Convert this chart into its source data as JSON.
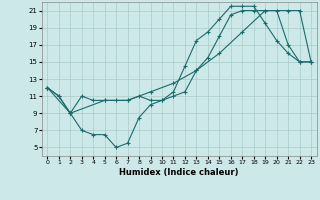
{
  "xlabel": "Humidex (Indice chaleur)",
  "bg_color": "#cce8e8",
  "grid_color": "#aacccc",
  "line_color": "#1a6b6b",
  "xlim": [
    -0.5,
    23.5
  ],
  "ylim": [
    4,
    22
  ],
  "xticks": [
    0,
    1,
    2,
    3,
    4,
    5,
    6,
    7,
    8,
    9,
    10,
    11,
    12,
    13,
    14,
    15,
    16,
    17,
    18,
    19,
    20,
    21,
    22,
    23
  ],
  "yticks": [
    5,
    7,
    9,
    11,
    13,
    15,
    17,
    19,
    21
  ],
  "line1_x": [
    0,
    1,
    2,
    3,
    4,
    5,
    6,
    7,
    8,
    9,
    10,
    11,
    12,
    13,
    14,
    15,
    16,
    17,
    18,
    19,
    20,
    21,
    22,
    23
  ],
  "line1_y": [
    12,
    11,
    9,
    7,
    6.5,
    6.5,
    5,
    5.5,
    8.5,
    10,
    10.5,
    11,
    11.5,
    14,
    15.5,
    18,
    20.5,
    21,
    21,
    21,
    21,
    17,
    15,
    15
  ],
  "line2_x": [
    0,
    1,
    2,
    3,
    4,
    5,
    6,
    7,
    8,
    9,
    10,
    11,
    12,
    13,
    14,
    15,
    16,
    17,
    18,
    19,
    20,
    21,
    22,
    23
  ],
  "line2_y": [
    12,
    11,
    9,
    11,
    10.5,
    10.5,
    10.5,
    10.5,
    11,
    10.5,
    10.5,
    11.5,
    14.5,
    17.5,
    18.5,
    20,
    21.5,
    21.5,
    21.5,
    19.5,
    17.5,
    16,
    15,
    15
  ],
  "line3_x": [
    0,
    2,
    5,
    7,
    9,
    11,
    13,
    15,
    17,
    19,
    21,
    22,
    23
  ],
  "line3_y": [
    12,
    9,
    10.5,
    10.5,
    11.5,
    12.5,
    14,
    16,
    18.5,
    21,
    21,
    21,
    15
  ]
}
